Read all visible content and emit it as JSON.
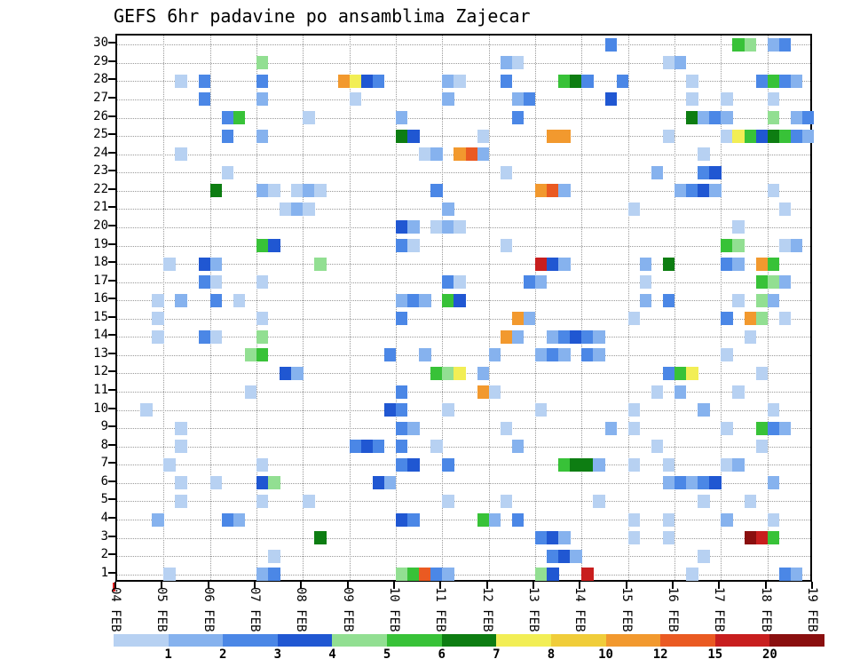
{
  "chart_data": {
    "type": "heatmap",
    "title": "GEFS 6hr padavine po ansamblima Zajecar",
    "x_axis": {
      "tick_labels": [
        "04 FEB",
        "05 FEB",
        "06 FEB",
        "07 FEB",
        "08 FEB",
        "09 FEB",
        "10 FEB",
        "11 FEB",
        "12 FEB",
        "13 FEB",
        "14 FEB",
        "15 FEB",
        "16 FEB",
        "17 FEB",
        "18 FEB",
        "19 FEB"
      ],
      "steps_per_day": 4,
      "n_steps": 60
    },
    "y_axis": {
      "labels": [
        30,
        29,
        28,
        27,
        26,
        25,
        24,
        23,
        22,
        21,
        20,
        19,
        18,
        17,
        16,
        15,
        14,
        13,
        12,
        11,
        10,
        9,
        8,
        7,
        6,
        5,
        4,
        3,
        2,
        1
      ]
    },
    "legend": {
      "labels": [
        "1",
        "2",
        "3",
        "4",
        "5",
        "6",
        "7",
        "8",
        "10",
        "12",
        "15",
        "20"
      ],
      "thresholds": [
        1,
        2,
        3,
        4,
        5,
        6,
        7,
        8,
        10,
        12,
        15,
        20
      ],
      "colors": [
        "#b7d1f2",
        "#86b2ee",
        "#4b87e6",
        "#2057d2",
        "#92df92",
        "#38c238",
        "#0d7d12",
        "#f2ee55",
        "#f0cd3a",
        "#f2992e",
        "#ea5a22",
        "#c81e1e",
        "#8a0f0f"
      ]
    },
    "cells": [
      [
        30,
        42,
        2
      ],
      [
        30,
        53,
        5
      ],
      [
        30,
        54,
        4
      ],
      [
        30,
        56,
        1
      ],
      [
        30,
        57,
        2
      ],
      [
        29,
        12,
        4
      ],
      [
        29,
        33,
        1
      ],
      [
        29,
        34,
        0
      ],
      [
        29,
        47,
        0
      ],
      [
        29,
        48,
        1
      ],
      [
        28,
        5,
        0
      ],
      [
        28,
        7,
        2
      ],
      [
        28,
        12,
        2
      ],
      [
        28,
        19,
        9
      ],
      [
        28,
        20,
        7
      ],
      [
        28,
        21,
        3
      ],
      [
        28,
        22,
        2
      ],
      [
        28,
        28,
        1
      ],
      [
        28,
        29,
        0
      ],
      [
        28,
        33,
        2
      ],
      [
        28,
        38,
        5
      ],
      [
        28,
        39,
        6
      ],
      [
        28,
        40,
        2
      ],
      [
        28,
        43,
        2
      ],
      [
        28,
        49,
        0
      ],
      [
        28,
        55,
        2
      ],
      [
        28,
        56,
        5
      ],
      [
        28,
        57,
        2
      ],
      [
        28,
        58,
        1
      ],
      [
        27,
        7,
        2
      ],
      [
        27,
        12,
        1
      ],
      [
        27,
        20,
        0
      ],
      [
        27,
        28,
        1
      ],
      [
        27,
        34,
        1
      ],
      [
        27,
        35,
        2
      ],
      [
        27,
        42,
        3
      ],
      [
        27,
        49,
        0
      ],
      [
        27,
        52,
        0
      ],
      [
        27,
        56,
        0
      ],
      [
        26,
        9,
        2
      ],
      [
        26,
        10,
        5
      ],
      [
        26,
        16,
        0
      ],
      [
        26,
        24,
        1
      ],
      [
        26,
        34,
        2
      ],
      [
        26,
        49,
        6
      ],
      [
        26,
        50,
        1
      ],
      [
        26,
        51,
        2
      ],
      [
        26,
        52,
        1
      ],
      [
        26,
        56,
        4
      ],
      [
        26,
        58,
        1
      ],
      [
        26,
        59,
        2
      ],
      [
        25,
        9,
        2
      ],
      [
        25,
        12,
        1
      ],
      [
        25,
        24,
        6
      ],
      [
        25,
        25,
        3
      ],
      [
        25,
        31,
        0
      ],
      [
        25,
        37,
        9
      ],
      [
        25,
        38,
        9
      ],
      [
        25,
        47,
        0
      ],
      [
        25,
        52,
        0
      ],
      [
        25,
        53,
        7
      ],
      [
        25,
        54,
        5
      ],
      [
        25,
        55,
        3
      ],
      [
        25,
        56,
        6
      ],
      [
        25,
        57,
        5
      ],
      [
        25,
        58,
        2
      ],
      [
        25,
        59,
        1
      ],
      [
        24,
        5,
        0
      ],
      [
        24,
        26,
        0
      ],
      [
        24,
        27,
        1
      ],
      [
        24,
        29,
        9
      ],
      [
        24,
        30,
        10
      ],
      [
        24,
        31,
        1
      ],
      [
        24,
        50,
        0
      ],
      [
        23,
        9,
        0
      ],
      [
        23,
        33,
        0
      ],
      [
        23,
        46,
        1
      ],
      [
        23,
        50,
        2
      ],
      [
        23,
        51,
        3
      ],
      [
        22,
        8,
        6
      ],
      [
        22,
        12,
        1
      ],
      [
        22,
        13,
        0
      ],
      [
        22,
        15,
        0
      ],
      [
        22,
        16,
        1
      ],
      [
        22,
        17,
        0
      ],
      [
        22,
        27,
        2
      ],
      [
        22,
        36,
        9
      ],
      [
        22,
        37,
        10
      ],
      [
        22,
        38,
        1
      ],
      [
        22,
        48,
        1
      ],
      [
        22,
        49,
        2
      ],
      [
        22,
        50,
        3
      ],
      [
        22,
        51,
        1
      ],
      [
        22,
        56,
        0
      ],
      [
        21,
        14,
        0
      ],
      [
        21,
        15,
        1
      ],
      [
        21,
        16,
        0
      ],
      [
        21,
        28,
        1
      ],
      [
        21,
        44,
        0
      ],
      [
        21,
        57,
        0
      ],
      [
        20,
        24,
        3
      ],
      [
        20,
        25,
        1
      ],
      [
        20,
        27,
        0
      ],
      [
        20,
        28,
        1
      ],
      [
        20,
        29,
        0
      ],
      [
        20,
        53,
        0
      ],
      [
        19,
        12,
        5
      ],
      [
        19,
        13,
        3
      ],
      [
        19,
        24,
        2
      ],
      [
        19,
        25,
        0
      ],
      [
        19,
        33,
        0
      ],
      [
        19,
        52,
        5
      ],
      [
        19,
        53,
        4
      ],
      [
        19,
        57,
        0
      ],
      [
        19,
        58,
        1
      ],
      [
        18,
        4,
        0
      ],
      [
        18,
        7,
        3
      ],
      [
        18,
        8,
        1
      ],
      [
        18,
        17,
        4
      ],
      [
        18,
        36,
        11
      ],
      [
        18,
        37,
        3
      ],
      [
        18,
        38,
        1
      ],
      [
        18,
        45,
        1
      ],
      [
        18,
        47,
        6
      ],
      [
        18,
        52,
        2
      ],
      [
        18,
        53,
        1
      ],
      [
        18,
        55,
        9
      ],
      [
        18,
        56,
        5
      ],
      [
        17,
        7,
        2
      ],
      [
        17,
        8,
        0
      ],
      [
        17,
        12,
        0
      ],
      [
        17,
        28,
        2
      ],
      [
        17,
        29,
        0
      ],
      [
        17,
        35,
        2
      ],
      [
        17,
        36,
        1
      ],
      [
        17,
        45,
        0
      ],
      [
        17,
        55,
        5
      ],
      [
        17,
        56,
        4
      ],
      [
        17,
        57,
        1
      ],
      [
        16,
        3,
        0
      ],
      [
        16,
        5,
        1
      ],
      [
        16,
        8,
        2
      ],
      [
        16,
        10,
        0
      ],
      [
        16,
        24,
        1
      ],
      [
        16,
        25,
        2
      ],
      [
        16,
        26,
        1
      ],
      [
        16,
        28,
        5
      ],
      [
        16,
        29,
        3
      ],
      [
        16,
        45,
        1
      ],
      [
        16,
        47,
        2
      ],
      [
        16,
        53,
        0
      ],
      [
        16,
        55,
        4
      ],
      [
        16,
        56,
        1
      ],
      [
        15,
        3,
        0
      ],
      [
        15,
        12,
        0
      ],
      [
        15,
        24,
        2
      ],
      [
        15,
        34,
        9
      ],
      [
        15,
        35,
        1
      ],
      [
        15,
        44,
        0
      ],
      [
        15,
        52,
        2
      ],
      [
        15,
        54,
        9
      ],
      [
        15,
        55,
        4
      ],
      [
        15,
        57,
        0
      ],
      [
        14,
        3,
        0
      ],
      [
        14,
        7,
        2
      ],
      [
        14,
        8,
        0
      ],
      [
        14,
        12,
        4
      ],
      [
        14,
        33,
        9
      ],
      [
        14,
        34,
        1
      ],
      [
        14,
        37,
        1
      ],
      [
        14,
        38,
        2
      ],
      [
        14,
        39,
        3
      ],
      [
        14,
        40,
        2
      ],
      [
        14,
        41,
        1
      ],
      [
        14,
        54,
        0
      ],
      [
        13,
        11,
        4
      ],
      [
        13,
        12,
        5
      ],
      [
        13,
        23,
        2
      ],
      [
        13,
        26,
        1
      ],
      [
        13,
        32,
        1
      ],
      [
        13,
        36,
        1
      ],
      [
        13,
        37,
        2
      ],
      [
        13,
        38,
        1
      ],
      [
        13,
        40,
        2
      ],
      [
        13,
        41,
        1
      ],
      [
        13,
        52,
        0
      ],
      [
        12,
        14,
        3
      ],
      [
        12,
        15,
        1
      ],
      [
        12,
        27,
        5
      ],
      [
        12,
        28,
        4
      ],
      [
        12,
        29,
        7
      ],
      [
        12,
        31,
        1
      ],
      [
        12,
        47,
        2
      ],
      [
        12,
        48,
        5
      ],
      [
        12,
        49,
        7
      ],
      [
        12,
        55,
        0
      ],
      [
        11,
        11,
        0
      ],
      [
        11,
        24,
        2
      ],
      [
        11,
        31,
        9
      ],
      [
        11,
        32,
        0
      ],
      [
        11,
        46,
        0
      ],
      [
        11,
        48,
        1
      ],
      [
        11,
        53,
        0
      ],
      [
        10,
        2,
        0
      ],
      [
        10,
        23,
        3
      ],
      [
        10,
        24,
        2
      ],
      [
        10,
        28,
        0
      ],
      [
        10,
        36,
        0
      ],
      [
        10,
        44,
        0
      ],
      [
        10,
        50,
        1
      ],
      [
        10,
        56,
        0
      ],
      [
        9,
        5,
        0
      ],
      [
        9,
        24,
        2
      ],
      [
        9,
        25,
        1
      ],
      [
        9,
        33,
        0
      ],
      [
        9,
        42,
        1
      ],
      [
        9,
        44,
        0
      ],
      [
        9,
        52,
        0
      ],
      [
        9,
        55,
        5
      ],
      [
        9,
        56,
        2
      ],
      [
        9,
        57,
        1
      ],
      [
        8,
        5,
        0
      ],
      [
        8,
        20,
        2
      ],
      [
        8,
        21,
        3
      ],
      [
        8,
        22,
        2
      ],
      [
        8,
        24,
        2
      ],
      [
        8,
        27,
        0
      ],
      [
        8,
        34,
        1
      ],
      [
        8,
        46,
        0
      ],
      [
        8,
        55,
        0
      ],
      [
        7,
        4,
        0
      ],
      [
        7,
        12,
        0
      ],
      [
        7,
        24,
        2
      ],
      [
        7,
        25,
        3
      ],
      [
        7,
        28,
        2
      ],
      [
        7,
        38,
        5
      ],
      [
        7,
        39,
        6
      ],
      [
        7,
        40,
        6
      ],
      [
        7,
        41,
        1
      ],
      [
        7,
        44,
        0
      ],
      [
        7,
        47,
        0
      ],
      [
        7,
        52,
        0
      ],
      [
        7,
        53,
        1
      ],
      [
        6,
        5,
        0
      ],
      [
        6,
        8,
        0
      ],
      [
        6,
        12,
        3
      ],
      [
        6,
        13,
        4
      ],
      [
        6,
        22,
        3
      ],
      [
        6,
        23,
        1
      ],
      [
        6,
        47,
        1
      ],
      [
        6,
        48,
        2
      ],
      [
        6,
        49,
        1
      ],
      [
        6,
        50,
        2
      ],
      [
        6,
        51,
        3
      ],
      [
        6,
        56,
        1
      ],
      [
        5,
        5,
        0
      ],
      [
        5,
        12,
        0
      ],
      [
        5,
        16,
        0
      ],
      [
        5,
        28,
        0
      ],
      [
        5,
        33,
        0
      ],
      [
        5,
        41,
        0
      ],
      [
        5,
        50,
        0
      ],
      [
        5,
        54,
        0
      ],
      [
        4,
        3,
        1
      ],
      [
        4,
        9,
        2
      ],
      [
        4,
        10,
        1
      ],
      [
        4,
        24,
        3
      ],
      [
        4,
        25,
        2
      ],
      [
        4,
        31,
        5
      ],
      [
        4,
        32,
        1
      ],
      [
        4,
        34,
        2
      ],
      [
        4,
        44,
        0
      ],
      [
        4,
        47,
        0
      ],
      [
        4,
        52,
        1
      ],
      [
        4,
        56,
        0
      ],
      [
        3,
        17,
        6
      ],
      [
        3,
        36,
        2
      ],
      [
        3,
        37,
        3
      ],
      [
        3,
        38,
        1
      ],
      [
        3,
        44,
        0
      ],
      [
        3,
        47,
        0
      ],
      [
        3,
        54,
        12
      ],
      [
        3,
        55,
        11
      ],
      [
        3,
        56,
        5
      ],
      [
        2,
        13,
        0
      ],
      [
        2,
        37,
        2
      ],
      [
        2,
        38,
        3
      ],
      [
        2,
        39,
        1
      ],
      [
        2,
        50,
        0
      ],
      [
        1,
        4,
        0
      ],
      [
        1,
        12,
        1
      ],
      [
        1,
        13,
        2
      ],
      [
        1,
        24,
        4
      ],
      [
        1,
        25,
        5
      ],
      [
        1,
        26,
        10
      ],
      [
        1,
        27,
        2
      ],
      [
        1,
        28,
        1
      ],
      [
        1,
        36,
        4
      ],
      [
        1,
        37,
        3
      ],
      [
        1,
        40,
        11
      ],
      [
        1,
        49,
        0
      ],
      [
        1,
        57,
        2
      ],
      [
        1,
        58,
        1
      ]
    ]
  }
}
